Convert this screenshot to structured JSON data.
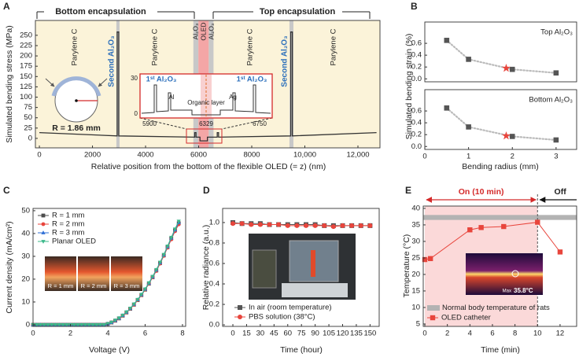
{
  "chart_data": [
    {
      "type": "line",
      "label": "A",
      "xlabel": "Relative position from the bottom of the flexible OLED (= z) (nm)",
      "ylabel": "Simulated bending stress (MPa)",
      "headings": [
        "Bottom encapsulation",
        "Top encapsulation"
      ],
      "annotations": [
        "Parylene C",
        "Second Al₂O₃",
        "Parylene C",
        "Al₂O₃",
        "OLED",
        "Al₂O₃",
        "Parylene C",
        "Second Al₂O₃",
        "Parylene C"
      ],
      "radius_label": "R = 1.86 mm",
      "inset": {
        "texts": [
          "1ˢᵗ Al₂O₃",
          "Al",
          "Organic layer",
          "Ag",
          "1ˢᵗ Al₂O₃"
        ],
        "xticks": [
          5900,
          6329,
          6750
        ],
        "yticks": [
          30,
          0
        ]
      },
      "background": "#fbf3d9",
      "layers": [
        {
          "range": [
            2900,
            3020
          ],
          "color": "#c8c8c8"
        },
        {
          "range": [
            5800,
            5990
          ],
          "color": "#c8c8c8"
        },
        {
          "range": [
            5990,
            6380
          ],
          "color": "#f4a6a6"
        },
        {
          "range": [
            6380,
            6560
          ],
          "color": "#c8c8c8"
        },
        {
          "range": [
            9420,
            9570
          ],
          "color": "#c8c8c8"
        }
      ],
      "x": [
        0,
        2930,
        2930,
        2990,
        2990,
        5850,
        5850,
        5900,
        5900,
        6050,
        6050,
        6330,
        6330,
        6700,
        6700,
        6750,
        6750,
        9470,
        9470,
        9530,
        9530,
        12700
      ],
      "values": [
        14,
        6,
        258,
        258,
        6,
        3,
        14,
        14,
        3,
        3,
        -6,
        -6,
        3,
        3,
        14,
        14,
        3,
        6,
        258,
        258,
        6,
        14
      ],
      "color": "#333333",
      "xlim": [
        -150,
        12830
      ],
      "ylim": [
        -23,
        286
      ],
      "xticks": [
        0,
        2000,
        4000,
        6000,
        8000,
        {
          "value": 10000,
          "label": "10,000"
        },
        {
          "value": 12000,
          "label": "12,000"
        }
      ],
      "yticks": [
        0,
        25,
        50,
        75,
        100,
        125,
        150,
        175,
        200,
        225,
        250
      ]
    },
    {
      "type": "scatter",
      "label": "B",
      "ylabel": "Simulated bending strain (%)",
      "title": "Top Al₂O₃",
      "xlim": [
        0,
        3.47
      ],
      "ylim": [
        -0.05,
        0.96
      ],
      "yticks": [
        {
          "value": 0,
          "label": "0.0"
        },
        0.2,
        0.4,
        0.6
      ],
      "x": [
        0.5,
        1,
        2,
        3
      ],
      "values": [
        0.65,
        0.33,
        0.16,
        0.1
      ],
      "color": "#555555",
      "fit_color": "#bbbbbb",
      "highlight": {
        "x": 1.86,
        "value": 0.18,
        "color": "#e8453c"
      }
    },
    {
      "type": "scatter",
      "title": "Bottom Al₂O₃",
      "xlabel": "Bending radius (mm)",
      "xlim": [
        0,
        3.47
      ],
      "ylim": [
        -0.05,
        0.96
      ],
      "xticks": [
        0,
        1,
        2,
        3
      ],
      "yticks": [
        {
          "value": 0,
          "label": "0.0"
        },
        0.2,
        0.4,
        0.6
      ],
      "x": [
        0.5,
        1,
        2,
        3
      ],
      "values": [
        0.65,
        0.33,
        0.17,
        0.11
      ],
      "color": "#555555",
      "fit_color": "#bbbbbb",
      "highlight": {
        "x": 1.86,
        "value": 0.18,
        "color": "#e8453c"
      }
    },
    {
      "type": "line",
      "label": "C",
      "xlabel": "Voltage (V)",
      "ylabel": "Current density (mA/cm²)",
      "xlim": [
        0,
        8.17
      ],
      "ylim": [
        -0.7,
        51
      ],
      "xticks": [
        0,
        2,
        4,
        6,
        8
      ],
      "yticks": [
        0,
        10,
        20,
        30,
        40,
        50
      ],
      "x": [
        0,
        0.2,
        0.4,
        0.6,
        0.8,
        1,
        1.2,
        1.4,
        1.6,
        1.8,
        2,
        2.2,
        2.4,
        2.6,
        2.8,
        3,
        3.2,
        3.4,
        3.6,
        3.8,
        4,
        4.2,
        4.4,
        4.6,
        4.8,
        5,
        5.2,
        5.4,
        5.6,
        5.8,
        6,
        6.2,
        6.4,
        6.6,
        6.8,
        7,
        7.2,
        7.4,
        7.6,
        7.8
      ],
      "series": [
        {
          "name": "R = 1 mm",
          "color": "#4d4d4d",
          "marker": "square",
          "values": [
            0,
            0,
            0,
            0,
            0,
            0,
            0,
            0,
            0,
            0,
            0,
            0,
            0,
            0,
            0,
            0,
            0,
            0,
            0,
            0,
            0.4,
            1,
            1.8,
            2.8,
            4,
            5.4,
            7,
            8.8,
            10.8,
            13,
            15.4,
            18,
            20.8,
            23.8,
            27,
            30.4,
            34,
            37.8,
            41.4,
            44.5
          ]
        },
        {
          "name": "R = 2 mm",
          "color": "#e8453c",
          "marker": "circle",
          "values": [
            0,
            0,
            0,
            0,
            0,
            0,
            0,
            0,
            0,
            0,
            0,
            0,
            0,
            0,
            0,
            0,
            0,
            0,
            0,
            0,
            0.4,
            1,
            1.8,
            2.8,
            4,
            5.4,
            7,
            8.8,
            10.8,
            13,
            15.4,
            18,
            20.8,
            23.6,
            26.8,
            30.2,
            33.8,
            37.4,
            41,
            44
          ]
        },
        {
          "name": "R = 3 mm",
          "color": "#2f6fd6",
          "marker": "triangle",
          "values": [
            0,
            0,
            0,
            0,
            0,
            0,
            0,
            0,
            0,
            0,
            0,
            0,
            0,
            0,
            0,
            0,
            0,
            0,
            0,
            0,
            0.4,
            1,
            1.9,
            2.9,
            4.1,
            5.5,
            7.1,
            9,
            11,
            13.2,
            15.6,
            18.2,
            21,
            24,
            27.2,
            30.6,
            34.2,
            38,
            41.6,
            44.8
          ]
        },
        {
          "name": "Planar OLED",
          "color": "#3bb88a",
          "marker": "triangle-down",
          "values": [
            0,
            0,
            0,
            0,
            0,
            0,
            0,
            0,
            0,
            0,
            0,
            0,
            0,
            0,
            0,
            0,
            0,
            0,
            0,
            0,
            0.5,
            1.1,
            2,
            3,
            4.2,
            5.6,
            7.2,
            9.1,
            11.1,
            13.3,
            15.7,
            18.4,
            21.2,
            24.2,
            27.4,
            30.8,
            34.5,
            38.3,
            42,
            45.4
          ]
        }
      ],
      "photo_labels": [
        "R = 1 mm",
        "R = 2 mm",
        "R = 3 mm"
      ]
    },
    {
      "type": "line",
      "label": "D",
      "xlabel": "Time (hour)",
      "ylabel": "Relative radiance (a.u.)",
      "xlim": [
        -11.2,
        160
      ],
      "ylim": [
        -0.015,
        1.138
      ],
      "xticks": [
        0,
        15,
        30,
        45,
        60,
        75,
        90,
        105,
        120,
        135,
        150
      ],
      "yticks": [
        {
          "value": 0,
          "label": "0.0"
        },
        0.2,
        0.4,
        0.6,
        0.8,
        {
          "value": 1,
          "label": "1.0"
        }
      ],
      "x": [
        0,
        10,
        20,
        30,
        40,
        50,
        60,
        70,
        80,
        90,
        100,
        110,
        120,
        130,
        140,
        150
      ],
      "series": [
        {
          "name": "In air (room temperature)",
          "color": "#555555",
          "marker": "square",
          "values": [
            1,
            0.99,
            0.99,
            0.99,
            0.98,
            0.98,
            0.98,
            0.98,
            0.98,
            0.98,
            0.97,
            0.97,
            0.97,
            0.97,
            0.97,
            0.97
          ]
        },
        {
          "name": "PBS solution (38°C)",
          "color": "#e8453c",
          "marker": "circle",
          "values": [
            0.99,
            0.99,
            0.98,
            0.98,
            0.98,
            0.98,
            0.97,
            0.97,
            0.97,
            0.97,
            0.97,
            0.96,
            0.97,
            0.97,
            0.97,
            0.97
          ]
        }
      ]
    },
    {
      "type": "line",
      "label": "E",
      "xlabel": "Time (min)",
      "ylabel": "Temperature (°C)",
      "xlim": [
        -0.14,
        13.47
      ],
      "ylim": [
        4.27,
        40.7
      ],
      "xticks": [
        0,
        2,
        4,
        6,
        8,
        10,
        12
      ],
      "yticks": [
        5,
        10,
        15,
        20,
        25,
        30,
        35,
        40
      ],
      "x": [
        0,
        0.5,
        4,
        5,
        7,
        10,
        12
      ],
      "series": [
        {
          "name": "OLED catheter",
          "color": "#e8453c",
          "marker": "square",
          "values": [
            24.5,
            24.8,
            33.5,
            34.2,
            34.5,
            35.8,
            26.8
          ]
        }
      ],
      "band": {
        "name": "Normal body temperature of rats",
        "range": [
          36.5,
          38
        ],
        "color": "#b3b3b3"
      },
      "on_period": {
        "label": "On (10 min)",
        "range": [
          0,
          10
        ],
        "color": "#fbd9d9"
      },
      "off_label": "Off",
      "thermal_label": "Max",
      "thermal_value": "35.8°C"
    }
  ]
}
